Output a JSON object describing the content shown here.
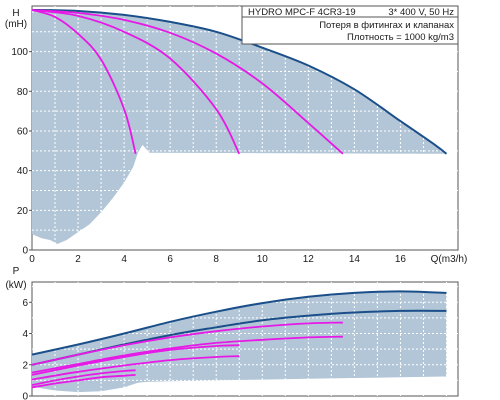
{
  "title_box": {
    "model": "HYDRO MPC-F 4CR3-19",
    "supply": "3* 400 V, 50 Hz",
    "note1": "Потеря в фитингах и клапанах",
    "note2": "Плотность = 1000 kg/m3"
  },
  "colors": {
    "envelope_fill": "#b3c6d7",
    "max_curve": "#1b4f8a",
    "pump_curves": "#e619e6",
    "grid": "#ffffff"
  },
  "chart_data": [
    {
      "type": "line",
      "name": "head",
      "ylabel_line1": "H",
      "ylabel_line2": "(mH)",
      "xlabel": "Q(m3/h)",
      "xlim": [
        0,
        18.5
      ],
      "ylim": [
        0,
        123
      ],
      "x_ticks": [
        0,
        2,
        4,
        6,
        8,
        10,
        12,
        14,
        16
      ],
      "y_ticks": [
        0,
        20,
        40,
        60,
        80,
        100
      ],
      "grid": true,
      "series": [
        {
          "pumps": 4,
          "color": "#1b4f8a",
          "x": [
            0,
            2,
            4,
            6,
            8,
            10,
            12,
            14,
            16,
            17.5,
            18
          ],
          "y": [
            121,
            120.5,
            118.5,
            115,
            110,
            102,
            93,
            81,
            65,
            53,
            48.5
          ]
        },
        {
          "pumps": 3,
          "color": "#e619e6",
          "x": [
            0,
            2,
            4,
            6,
            8,
            10,
            12,
            13.5
          ],
          "y": [
            121,
            119.5,
            116,
            109.5,
            99,
            84,
            64,
            48.5
          ]
        },
        {
          "pumps": 2,
          "color": "#e619e6",
          "x": [
            0,
            2,
            4,
            6,
            8,
            9
          ],
          "y": [
            121,
            118,
            110,
            96.5,
            71,
            48.5
          ]
        },
        {
          "pumps": 1,
          "color": "#e619e6",
          "x": [
            0,
            1,
            2,
            3,
            4,
            4.5
          ],
          "y": [
            121,
            117.5,
            109,
            96,
            71,
            48.5
          ]
        }
      ],
      "envelope": {
        "upper": {
          "x": [
            0,
            2,
            4,
            6,
            8,
            10,
            12,
            14,
            16,
            17.5,
            18
          ],
          "y": [
            121,
            120.5,
            118.5,
            115,
            110,
            102,
            93,
            81,
            65,
            53,
            48.5
          ]
        },
        "lower": {
          "x": [
            0,
            0.4,
            0.8,
            1.1,
            1.5,
            2,
            2.5,
            3,
            3.5,
            4,
            4.4,
            4.6,
            4.8,
            5.1,
            18
          ],
          "y": [
            8,
            6,
            5,
            3,
            5,
            9,
            13,
            19,
            26,
            34,
            42,
            49,
            53,
            49,
            48.5
          ]
        }
      }
    },
    {
      "type": "line",
      "name": "power",
      "ylabel_line1": "P",
      "ylabel_line2": "(kW)",
      "xlim": [
        0,
        18.5
      ],
      "ylim": [
        0,
        7.3
      ],
      "y_ticks": [
        0,
        2,
        4,
        6
      ],
      "grid": true,
      "series": [
        {
          "pumps": 4,
          "color": "#1b4f8a",
          "x": [
            0,
            2,
            4,
            6,
            8,
            10,
            12,
            14,
            16,
            18
          ],
          "y": [
            2.65,
            3.3,
            4.0,
            4.75,
            5.4,
            5.95,
            6.35,
            6.6,
            6.7,
            6.6
          ]
        },
        {
          "pumps": 4,
          "color": "#1b4f8a",
          "x": [
            0,
            2,
            4,
            6,
            8,
            10,
            12,
            14,
            16,
            18
          ],
          "y": [
            2.0,
            2.65,
            3.3,
            3.9,
            4.4,
            4.85,
            5.15,
            5.35,
            5.45,
            5.45
          ]
        },
        {
          "pumps": 3,
          "color": "#e619e6",
          "x": [
            0,
            2,
            4,
            6,
            8,
            10,
            12,
            13.5
          ],
          "y": [
            2.0,
            2.65,
            3.25,
            3.75,
            4.15,
            4.45,
            4.65,
            4.7
          ]
        },
        {
          "pumps": 3,
          "color": "#e619e6",
          "x": [
            0,
            2,
            4,
            6,
            8,
            10,
            12,
            13.5
          ],
          "y": [
            1.5,
            2.05,
            2.6,
            3.05,
            3.4,
            3.6,
            3.75,
            3.8
          ]
        },
        {
          "pumps": 2,
          "color": "#e619e6",
          "x": [
            0,
            2,
            4,
            6,
            8,
            9
          ],
          "y": [
            1.35,
            1.95,
            2.5,
            2.95,
            3.2,
            3.25
          ]
        },
        {
          "pumps": 2,
          "color": "#e619e6",
          "x": [
            0,
            2,
            4,
            6,
            8,
            9
          ],
          "y": [
            1.05,
            1.55,
            1.95,
            2.3,
            2.5,
            2.55
          ]
        },
        {
          "pumps": 1,
          "color": "#e619e6",
          "x": [
            0,
            1,
            2,
            3,
            4,
            4.5
          ],
          "y": [
            0.7,
            1.0,
            1.25,
            1.45,
            1.6,
            1.65
          ]
        },
        {
          "pumps": 1,
          "color": "#e619e6",
          "x": [
            0,
            1,
            2,
            3,
            4,
            4.5
          ],
          "y": [
            0.55,
            0.8,
            1.0,
            1.2,
            1.3,
            1.35
          ]
        }
      ],
      "envelope": {
        "upper": {
          "x": [
            0,
            2,
            4,
            6,
            8,
            10,
            12,
            14,
            16,
            18
          ],
          "y": [
            2.65,
            3.3,
            4.0,
            4.75,
            5.4,
            5.95,
            6.35,
            6.6,
            6.7,
            6.6
          ]
        },
        "lower": {
          "x": [
            0,
            1,
            2,
            3,
            4,
            4.6,
            5,
            6,
            8,
            10,
            12,
            14,
            16,
            18
          ],
          "y": [
            0.6,
            0.35,
            0.25,
            0.3,
            0.55,
            0.85,
            0.9,
            0.95,
            1.0,
            1.05,
            1.1,
            1.15,
            1.2,
            1.25
          ]
        }
      }
    }
  ]
}
